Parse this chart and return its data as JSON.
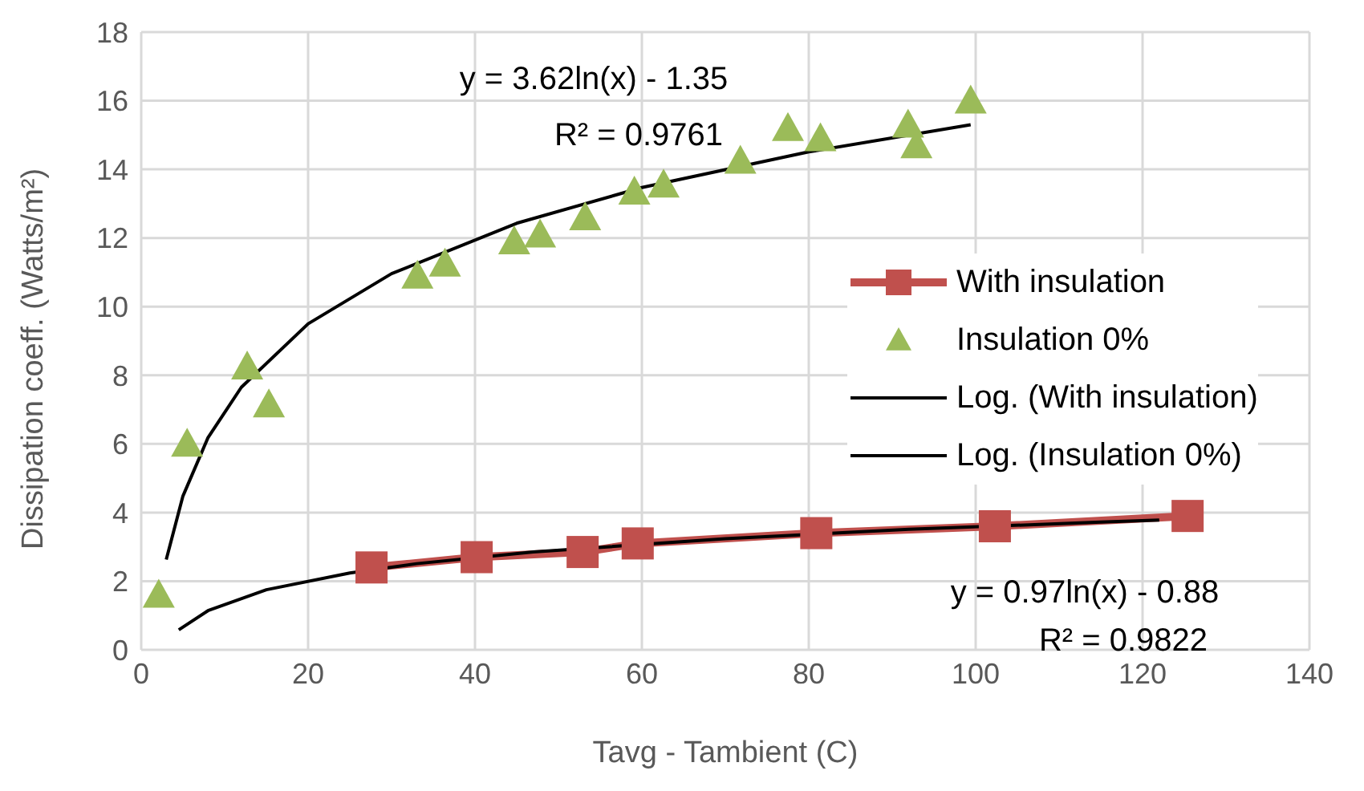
{
  "chart_data": {
    "type": "scatter",
    "xlabel": "Tavg - Tambient (C)",
    "ylabel": "Dissipation coeff. (Watts/m²)",
    "xlim": [
      0,
      140
    ],
    "xticks": [
      0,
      20,
      40,
      60,
      80,
      100,
      120,
      140
    ],
    "ylim": [
      0,
      18
    ],
    "yticks": [
      0,
      2,
      4,
      6,
      8,
      10,
      12,
      14,
      16,
      18
    ],
    "grid": true,
    "legend": "right",
    "series": [
      {
        "name": "With insulation",
        "type": "line",
        "color": "#c0504d",
        "marker": "square",
        "line_style": "solid",
        "x": [
          27.6,
          40.2,
          52.9,
          59.5,
          80.9,
          102.3,
          125.4
        ],
        "values": [
          2.4,
          2.7,
          2.85,
          3.1,
          3.4,
          3.6,
          3.9
        ]
      },
      {
        "name": "Insulation 0%",
        "color": "#9bbb59",
        "marker": "triangle",
        "x": [
          2.1,
          5.5,
          12.7,
          15.3,
          33.1,
          36.4,
          44.7,
          47.8,
          53.2,
          59.1,
          62.6,
          71.8,
          77.5,
          81.4,
          91.9,
          92.9,
          99.4
        ],
        "values": [
          1.6,
          6.0,
          8.25,
          7.15,
          10.9,
          11.25,
          11.9,
          12.1,
          12.6,
          13.35,
          13.55,
          14.25,
          15.2,
          14.9,
          15.3,
          14.7,
          16.0
        ]
      },
      {
        "name": "Log. (With insulation)",
        "type": "line",
        "color": "#000000",
        "marker": "none",
        "line_style": "solid",
        "x": [
          4.5,
          8,
          15,
          25,
          33,
          47,
          70,
          92,
          115,
          122
        ],
        "values": [
          0.58,
          1.14,
          1.75,
          2.24,
          2.51,
          2.85,
          3.24,
          3.51,
          3.72,
          3.78
        ]
      },
      {
        "name": "Log. (Insulation 0%)",
        "type": "line",
        "color": "#000000",
        "marker": "none",
        "line_style": "solid",
        "x": [
          3,
          5,
          8,
          12,
          20,
          30,
          45,
          60,
          80,
          99.4
        ],
        "values": [
          2.63,
          4.48,
          6.18,
          7.65,
          9.5,
          10.96,
          12.43,
          13.47,
          14.51,
          15.3
        ]
      }
    ],
    "annotations": [
      "y = 3.62ln(x) - 1.35",
      "R² = 0.9761",
      "y = 0.97ln(x) - 0.88",
      "R² = 0.9822"
    ]
  }
}
